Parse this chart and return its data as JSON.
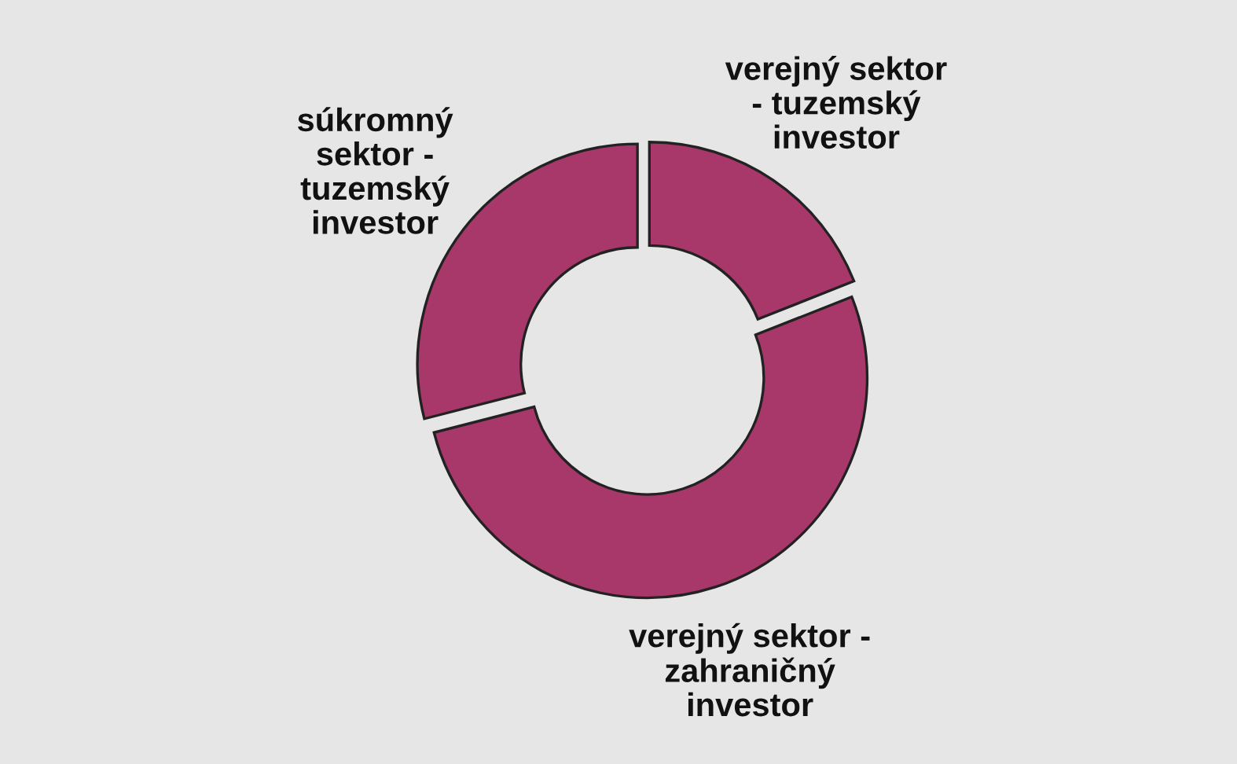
{
  "chart_data": {
    "type": "donut",
    "categories": [
      "verejný sektor\n- tuzemský\ninvestor",
      "verejný sektor -\nzahraničný\ninvestor",
      "súkromný\nsektor -\ntuzemský\ninvestor"
    ],
    "values": [
      19,
      52,
      29
    ],
    "colors": [
      "#a8386a",
      "#a8386a",
      "#a8386a"
    ],
    "legend": false
  }
}
